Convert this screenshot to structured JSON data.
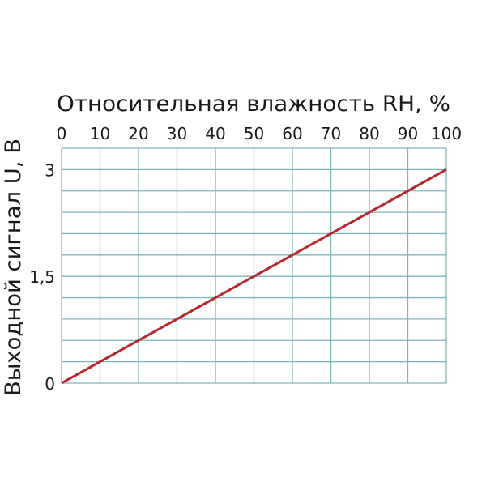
{
  "chart_data": {
    "type": "line",
    "xlabel": "Относительная влажность RH, %",
    "ylabel": "Выходной сигнал U, В",
    "xlim": [
      0,
      100
    ],
    "ylim": [
      0,
      3.3
    ],
    "x_ticks": [
      "0",
      "10",
      "20",
      "30",
      "40",
      "50",
      "60",
      "70",
      "80",
      "90",
      "100"
    ],
    "y_ticks": [
      {
        "value": 0,
        "label": "0"
      },
      {
        "value": 1.5,
        "label": "1,5"
      },
      {
        "value": 3,
        "label": "3"
      }
    ],
    "x_grid_step": 10,
    "y_grid_step": 0.3,
    "grid": true,
    "x_axis_position": "top",
    "series": [
      {
        "x": [
          0,
          100
        ],
        "y": [
          0,
          3
        ]
      }
    ],
    "colors": {
      "grid": "#80b4b8",
      "line": "#b3282d"
    }
  }
}
